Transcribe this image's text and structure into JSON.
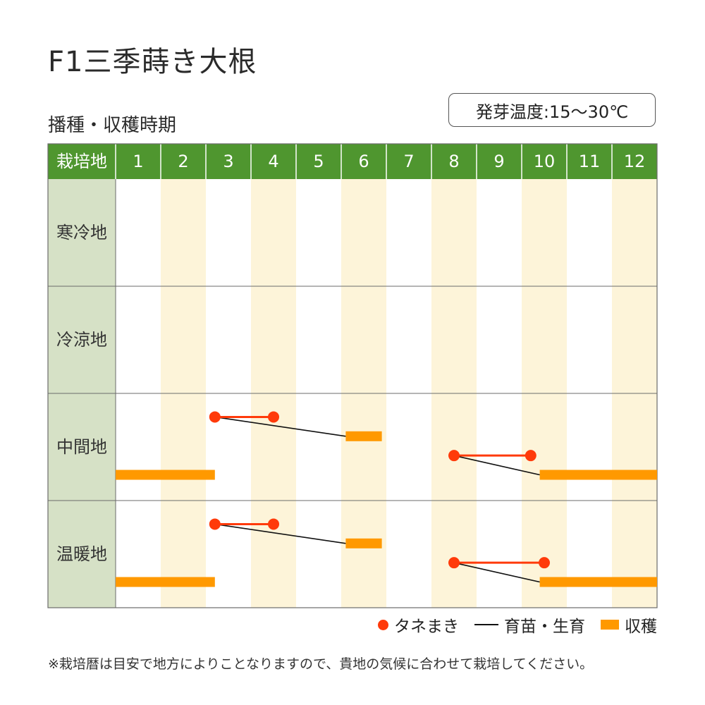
{
  "title": "F1三季蒔き大根",
  "subtitle": "播種・収穫時期",
  "germination_temp": "発芽温度:15〜30℃",
  "footnote": "※栽培暦は目安で地方によりことなりますので、貴地の気候に合わせて栽培してください。",
  "legend": {
    "sowing": "タネまき",
    "seedling": "育苗・生育",
    "harvest": "収穫"
  },
  "colors": {
    "header_green": "#4f962f",
    "row_label_bg": "#d6e1c6",
    "alt_column_bg": "#fdf4d9",
    "sowing_red": "#ff3a0a",
    "growth_line": "#111111",
    "harvest_orange": "#ff9900",
    "grid_line": "#6b6b6b"
  },
  "chart_data": {
    "type": "table",
    "header_label": "栽培地",
    "months": [
      "1",
      "2",
      "3",
      "4",
      "5",
      "6",
      "7",
      "8",
      "9",
      "10",
      "11",
      "12"
    ],
    "regions": [
      {
        "name": "寒冷地",
        "sowing": [],
        "harvest": []
      },
      {
        "name": "冷涼地",
        "sowing": [],
        "harvest": []
      },
      {
        "name": "中間地",
        "sowing": [
          {
            "start": 3.2,
            "end": 4.5,
            "growth_to": 6.1,
            "harvest": [
              6.1,
              6.9
            ]
          },
          {
            "start": 8.5,
            "end": 10.2,
            "growth_to": 10.4,
            "harvest": [
              10.4,
              13.0
            ]
          }
        ],
        "harvest": [
          {
            "start": 1.0,
            "end": 3.2
          }
        ]
      },
      {
        "name": "温暖地",
        "sowing": [
          {
            "start": 3.2,
            "end": 4.5,
            "growth_to": 6.1,
            "harvest": [
              6.1,
              6.9
            ]
          },
          {
            "start": 8.5,
            "end": 10.5,
            "growth_to": 10.4,
            "harvest": [
              10.4,
              13.0
            ]
          }
        ],
        "harvest": [
          {
            "start": 1.0,
            "end": 3.2
          }
        ]
      }
    ]
  }
}
